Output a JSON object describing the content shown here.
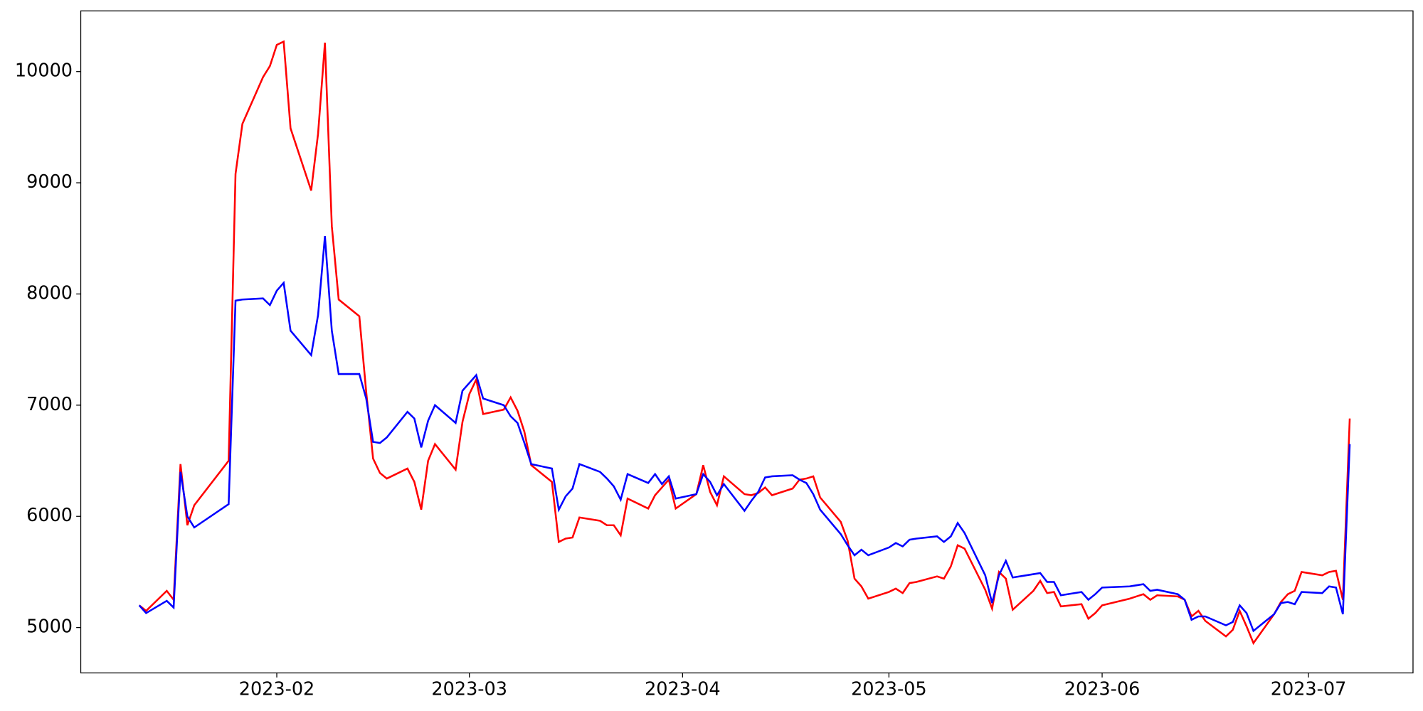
{
  "chart_data": {
    "type": "line",
    "x": [
      12,
      13,
      16,
      17,
      18,
      19,
      20,
      25,
      26,
      27,
      30,
      31,
      32,
      33,
      34,
      37,
      38,
      39,
      40,
      41,
      44,
      45,
      46,
      47,
      48,
      51,
      52,
      53,
      54,
      55,
      58,
      59,
      60,
      61,
      62,
      65,
      66,
      67,
      68,
      69,
      72,
      73,
      74,
      75,
      76,
      79,
      80,
      81,
      82,
      83,
      86,
      87,
      88,
      89,
      90,
      93,
      94,
      95,
      96,
      97,
      100,
      101,
      102,
      103,
      104,
      107,
      108,
      109,
      110,
      111,
      114,
      115,
      116,
      117,
      118,
      121,
      122,
      123,
      124,
      125,
      128,
      129,
      130,
      131,
      132,
      135,
      136,
      137,
      138,
      139,
      142,
      143,
      144,
      145,
      146,
      149,
      150,
      151,
      152,
      156,
      157,
      158,
      159,
      160,
      163,
      164,
      165,
      166,
      167,
      170,
      171,
      172,
      173,
      174,
      177,
      178,
      179,
      180,
      181,
      184,
      185,
      186,
      187,
      188
    ],
    "series": [
      {
        "color": "#ff0000",
        "values": [
          5200,
          5150,
          5330,
          5250,
          6470,
          5920,
          6100,
          6500,
          9080,
          9530,
          9950,
          10050,
          10240,
          10270,
          9490,
          8930,
          9440,
          10260,
          8610,
          7950,
          7800,
          7120,
          6520,
          6390,
          6340,
          6430,
          6310,
          6060,
          6500,
          6650,
          6420,
          6850,
          7100,
          7230,
          6920,
          6960,
          7070,
          6950,
          6760,
          6460,
          6310,
          5770,
          5800,
          5810,
          5990,
          5960,
          5920,
          5920,
          5830,
          6160,
          6070,
          6190,
          6260,
          6330,
          6070,
          6200,
          6460,
          6220,
          6100,
          6360,
          6200,
          6190,
          6210,
          6260,
          6190,
          6250,
          6330,
          6340,
          6360,
          6170,
          5950,
          5780,
          5440,
          5370,
          5260,
          5320,
          5350,
          5310,
          5400,
          5410,
          5460,
          5440,
          5550,
          5740,
          5710,
          5340,
          5170,
          5500,
          5440,
          5160,
          5330,
          5420,
          5310,
          5320,
          5190,
          5210,
          5080,
          5130,
          5200,
          5260,
          5280,
          5300,
          5250,
          5290,
          5280,
          5250,
          5100,
          5150,
          5060,
          4920,
          4980,
          5150,
          5010,
          4860,
          5120,
          5230,
          5300,
          5330,
          5500,
          5470,
          5500,
          5510,
          5250,
          6880
        ]
      },
      {
        "color": "#0000ff",
        "values": [
          5200,
          5130,
          5240,
          5180,
          6400,
          6000,
          5900,
          6110,
          7940,
          7950,
          7960,
          7900,
          8030,
          8100,
          7670,
          7450,
          7810,
          8520,
          7670,
          7280,
          7280,
          7060,
          6670,
          6660,
          6710,
          6940,
          6880,
          6620,
          6860,
          7000,
          6840,
          7130,
          7200,
          7270,
          7060,
          7000,
          6900,
          6840,
          6660,
          6470,
          6430,
          6060,
          6180,
          6250,
          6470,
          6400,
          6340,
          6270,
          6150,
          6380,
          6300,
          6380,
          6290,
          6360,
          6160,
          6200,
          6380,
          6310,
          6190,
          6290,
          6050,
          6140,
          6220,
          6350,
          6360,
          6370,
          6330,
          6300,
          6200,
          6060,
          5840,
          5740,
          5650,
          5700,
          5650,
          5720,
          5760,
          5730,
          5790,
          5800,
          5820,
          5770,
          5820,
          5940,
          5850,
          5470,
          5220,
          5470,
          5600,
          5450,
          5480,
          5490,
          5410,
          5410,
          5290,
          5320,
          5250,
          5300,
          5360,
          5370,
          5380,
          5390,
          5330,
          5340,
          5300,
          5250,
          5070,
          5100,
          5100,
          5020,
          5050,
          5200,
          5130,
          4970,
          5120,
          5220,
          5230,
          5210,
          5320,
          5310,
          5370,
          5360,
          5120,
          6650
        ]
      }
    ],
    "xlim": [
      3.5,
      197.2
    ],
    "xticks": [
      {
        "value": 32,
        "label": "2023-02"
      },
      {
        "value": 60,
        "label": "2023-03"
      },
      {
        "value": 91,
        "label": "2023-04"
      },
      {
        "value": 121,
        "label": "2023-05"
      },
      {
        "value": 152,
        "label": "2023-06"
      },
      {
        "value": 182,
        "label": "2023-07"
      }
    ],
    "ylim": [
      4592,
      10546
    ],
    "yticks": [
      5000,
      6000,
      7000,
      8000,
      9000,
      10000
    ]
  }
}
